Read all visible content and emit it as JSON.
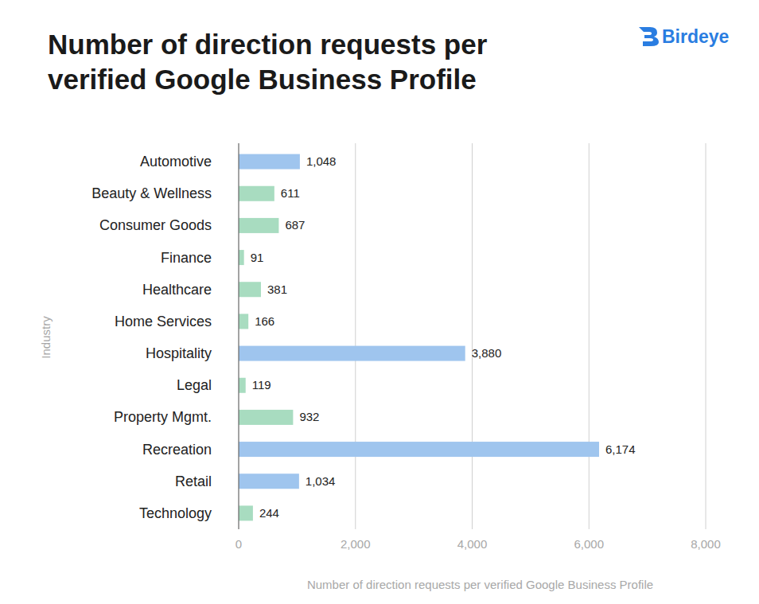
{
  "chart_data": {
    "type": "bar",
    "orientation": "horizontal",
    "title": "Number of direction requests per verified Google Business Profile",
    "annotations": [
      "Birdeye"
    ],
    "x_label": "Number of direction requests per verified Google Business Profile",
    "y_label": "Industry",
    "categories": [
      "Automotive",
      "Beauty & Wellness",
      "Consumer Goods",
      "Finance",
      "Healthcare",
      "Home Services",
      "Hospitality",
      "Legal",
      "Property Mgmt.",
      "Recreation",
      "Retail",
      "Technology"
    ],
    "values": [
      1048,
      611,
      687,
      91,
      381,
      166,
      3880,
      119,
      932,
      6174,
      1034,
      244
    ],
    "value_labels": [
      "1,048",
      "611",
      "687",
      "91",
      "381",
      "166",
      "3,880",
      "119",
      "932",
      "6,174",
      "1,034",
      "244"
    ],
    "colors": [
      "#9fc5ee",
      "#a8dcc0",
      "#a8dcc0",
      "#a8dcc0",
      "#a8dcc0",
      "#a8dcc0",
      "#9fc5ee",
      "#a8dcc0",
      "#a8dcc0",
      "#9fc5ee",
      "#9fc5ee",
      "#a8dcc0"
    ],
    "xlim": [
      0,
      8000
    ],
    "xticks": [
      0,
      {
        "value": 2000,
        "label": "2,000"
      },
      {
        "value": 4000,
        "label": "4,000"
      },
      {
        "value": 6000,
        "label": "6,000"
      },
      {
        "value": 8000,
        "label": "8,000"
      }
    ],
    "grid": true,
    "data_labels": true
  }
}
